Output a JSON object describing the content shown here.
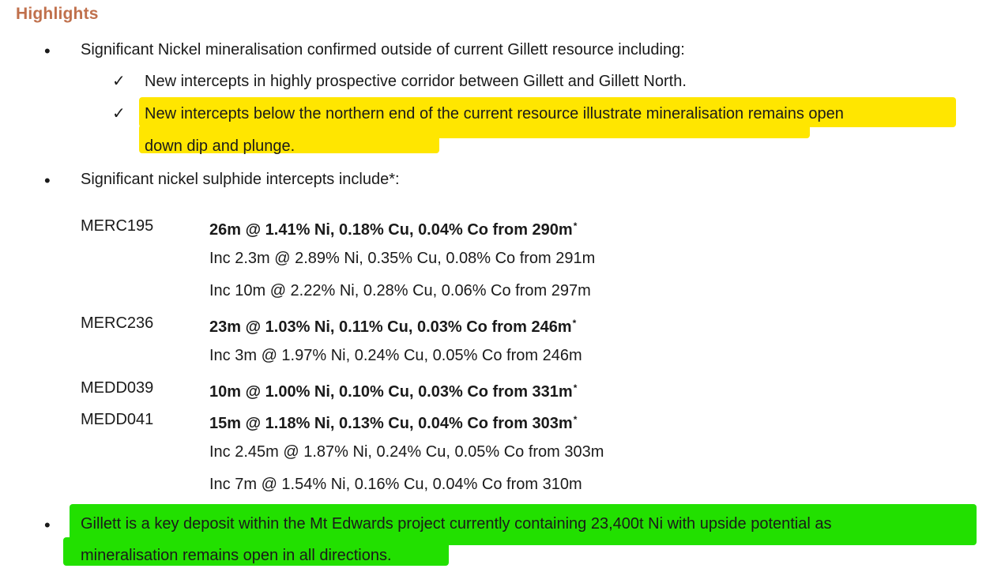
{
  "heading": "Highlights",
  "bullet_char": "•",
  "check_char": "✓",
  "bullet1": {
    "text": "Significant Nickel mineralisation confirmed outside of current Gillett resource including:",
    "sub1": "New intercepts in highly prospective corridor between Gillett and Gillett North.",
    "sub2_line1": "New intercepts below the northern end of the current resource illustrate mineralisation remains open",
    "sub2_line2": "down dip and plunge."
  },
  "bullet2": {
    "text": "Significant nickel sulphide intercepts include*:"
  },
  "intercepts": [
    {
      "hole": "MERC195",
      "main": "26m @ 1.41% Ni, 0.18% Cu, 0.04% Co from 290m",
      "star": "*",
      "inc": [
        "Inc 2.3m @ 2.89% Ni, 0.35% Cu, 0.08% Co from 291m",
        "Inc 10m @ 2.22% Ni, 0.28% Cu, 0.06% Co from 297m"
      ]
    },
    {
      "hole": "MERC236",
      "main": "23m @ 1.03% Ni, 0.11% Cu, 0.03% Co from 246m",
      "star": "*",
      "inc": [
        "Inc 3m @ 1.97% Ni, 0.24% Cu, 0.05% Co from 246m"
      ]
    },
    {
      "hole": "MEDD039",
      "main": "10m @ 1.00% Ni, 0.10% Cu, 0.03% Co from 331m",
      "star": "*",
      "inc": []
    },
    {
      "hole": "MEDD041",
      "main": "15m @ 1.18% Ni, 0.13% Cu, 0.04% Co from 303m",
      "star": "*",
      "inc": [
        "Inc 2.45m @ 1.87% Ni, 0.24% Cu, 0.05% Co from 303m",
        "Inc 7m @ 1.54% Ni, 0.16% Cu, 0.04% Co from 310m"
      ]
    }
  ],
  "bullet3": {
    "line1": "Gillett is a key deposit within the Mt Edwards project currently containing 23,400t Ni with upside potential as",
    "line2": "mineralisation remains open in all directions."
  },
  "highlight_colors": {
    "yellow": "#ffe600",
    "green": "#22e000"
  },
  "heading_color": "#c0704c"
}
